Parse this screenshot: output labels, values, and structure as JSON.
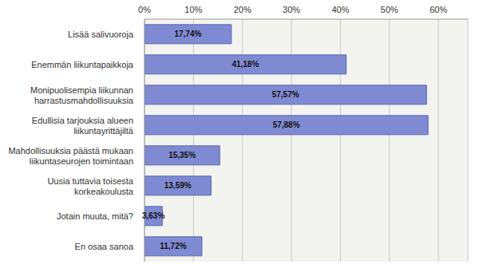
{
  "chart_data": {
    "type": "bar",
    "orientation": "horizontal",
    "categories": [
      "Lisää salivuoroja",
      "Enemmän liikuntapaikkoja",
      "Monipuolisempia liikunnan harrastusmahdollisuuksia",
      "Edullisia tarjouksia alueen liikuntayrittäjiltä",
      "Mahdollisuuksia päästä mukaan liikuntaseurojen toimintaan",
      "Uusia tuttavia toisesta korkeakoulusta",
      "Jotain muuta, mitä?",
      "En osaa sanoa"
    ],
    "values": [
      17.74,
      41.18,
      57.57,
      57.88,
      15.35,
      13.59,
      3.63,
      11.72
    ],
    "value_labels": [
      "17,74%",
      "41,18%",
      "57,57%",
      "57,88%",
      "15,35%",
      "13,59%",
      "3,63%",
      "11,72%"
    ],
    "data_labels": true,
    "color": "#7f8ad2",
    "xlim": [
      0,
      66
    ],
    "xticks": [
      {
        "value": 0,
        "label": "0%"
      },
      {
        "value": 10,
        "label": "10%"
      },
      {
        "value": 20,
        "label": "20%"
      },
      {
        "value": 30,
        "label": "30%"
      },
      {
        "value": 40,
        "label": "40%"
      },
      {
        "value": 50,
        "label": "50%"
      },
      {
        "value": 60,
        "label": "60%"
      }
    ],
    "grid": true
  }
}
